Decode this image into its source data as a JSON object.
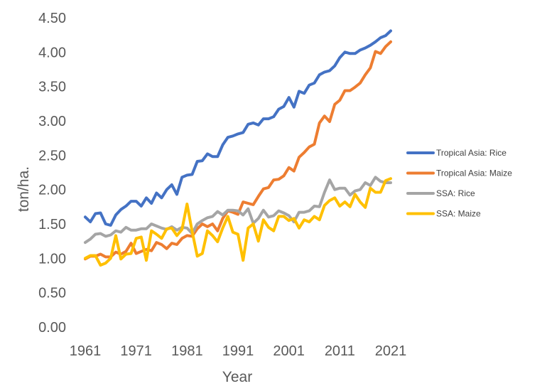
{
  "chart_data": {
    "type": "line",
    "xlabel": "Year",
    "ylabel": "ton/ha.",
    "ylim": [
      0,
      4.5
    ],
    "yticks": [
      "0.00",
      "0.50",
      "1.00",
      "1.50",
      "2.00",
      "2.50",
      "3.00",
      "3.50",
      "4.00",
      "4.50"
    ],
    "xticks": [
      "1961",
      "1971",
      "1981",
      "1991",
      "2001",
      "2011",
      "2021"
    ],
    "grid": false,
    "legend_position": "right",
    "x": [
      1961,
      1962,
      1963,
      1964,
      1965,
      1966,
      1967,
      1968,
      1969,
      1970,
      1971,
      1972,
      1973,
      1974,
      1975,
      1976,
      1977,
      1978,
      1979,
      1980,
      1981,
      1982,
      1983,
      1984,
      1985,
      1986,
      1987,
      1988,
      1989,
      1990,
      1991,
      1992,
      1993,
      1994,
      1995,
      1996,
      1997,
      1998,
      1999,
      2000,
      2001,
      2002,
      2003,
      2004,
      2005,
      2006,
      2007,
      2008,
      2009,
      2010,
      2011,
      2012,
      2013,
      2014,
      2015,
      2016,
      2017,
      2018,
      2019,
      2020,
      2021
    ],
    "series": [
      {
        "name": "Tropical Asia: Rice",
        "color": "#4472C4",
        "values": [
          1.6,
          1.53,
          1.65,
          1.66,
          1.5,
          1.48,
          1.63,
          1.71,
          1.76,
          1.83,
          1.83,
          1.76,
          1.88,
          1.8,
          1.95,
          1.88,
          2.0,
          2.07,
          1.93,
          2.18,
          2.21,
          2.22,
          2.41,
          2.42,
          2.52,
          2.48,
          2.48,
          2.65,
          2.76,
          2.78,
          2.81,
          2.83,
          2.95,
          2.97,
          2.94,
          3.03,
          3.03,
          3.06,
          3.17,
          3.21,
          3.34,
          3.2,
          3.43,
          3.4,
          3.52,
          3.55,
          3.67,
          3.71,
          3.73,
          3.8,
          3.92,
          4.0,
          3.98,
          3.98,
          4.03,
          4.06,
          4.1,
          4.15,
          4.21,
          4.24,
          4.31
        ]
      },
      {
        "name": "Tropical Asia: Maize",
        "color": "#ED7D31",
        "values": [
          0.99,
          1.03,
          1.03,
          1.06,
          1.02,
          1.02,
          1.09,
          1.06,
          1.1,
          1.22,
          1.07,
          1.1,
          1.13,
          1.11,
          1.23,
          1.2,
          1.14,
          1.22,
          1.2,
          1.29,
          1.33,
          1.32,
          1.43,
          1.5,
          1.46,
          1.5,
          1.4,
          1.58,
          1.69,
          1.67,
          1.64,
          1.82,
          1.8,
          1.78,
          1.9,
          2.01,
          2.03,
          2.14,
          2.15,
          2.2,
          2.32,
          2.27,
          2.47,
          2.54,
          2.62,
          2.66,
          2.97,
          3.07,
          2.99,
          3.24,
          3.3,
          3.44,
          3.44,
          3.49,
          3.55,
          3.67,
          3.77,
          4.01,
          3.98,
          4.08,
          4.15
        ]
      },
      {
        "name": "SSA: Rice",
        "color": "#A5A5A5",
        "values": [
          1.23,
          1.28,
          1.35,
          1.36,
          1.32,
          1.34,
          1.4,
          1.38,
          1.45,
          1.41,
          1.41,
          1.43,
          1.43,
          1.5,
          1.47,
          1.44,
          1.42,
          1.46,
          1.41,
          1.45,
          1.44,
          1.36,
          1.5,
          1.55,
          1.59,
          1.61,
          1.68,
          1.63,
          1.7,
          1.7,
          1.69,
          1.63,
          1.72,
          1.51,
          1.58,
          1.7,
          1.6,
          1.62,
          1.69,
          1.66,
          1.62,
          1.53,
          1.67,
          1.67,
          1.69,
          1.76,
          1.75,
          1.96,
          2.14,
          2.0,
          2.02,
          2.02,
          1.92,
          1.98,
          2.0,
          2.1,
          2.06,
          2.18,
          2.12,
          2.1,
          2.1
        ]
      },
      {
        "name": "SSA: Maize",
        "color": "#FFC000",
        "values": [
          1.0,
          1.04,
          1.04,
          0.9,
          0.93,
          1.0,
          1.33,
          0.99,
          1.06,
          1.07,
          1.29,
          1.31,
          0.97,
          1.4,
          1.35,
          1.29,
          1.43,
          1.44,
          1.33,
          1.42,
          1.79,
          1.39,
          1.03,
          1.07,
          1.4,
          1.33,
          1.24,
          1.44,
          1.61,
          1.38,
          1.35,
          0.97,
          1.44,
          1.5,
          1.25,
          1.56,
          1.45,
          1.4,
          1.61,
          1.61,
          1.55,
          1.58,
          1.44,
          1.56,
          1.53,
          1.61,
          1.56,
          1.77,
          1.84,
          1.88,
          1.76,
          1.82,
          1.75,
          1.93,
          1.82,
          1.74,
          2.02,
          1.96,
          1.96,
          2.13,
          2.16
        ]
      }
    ]
  }
}
